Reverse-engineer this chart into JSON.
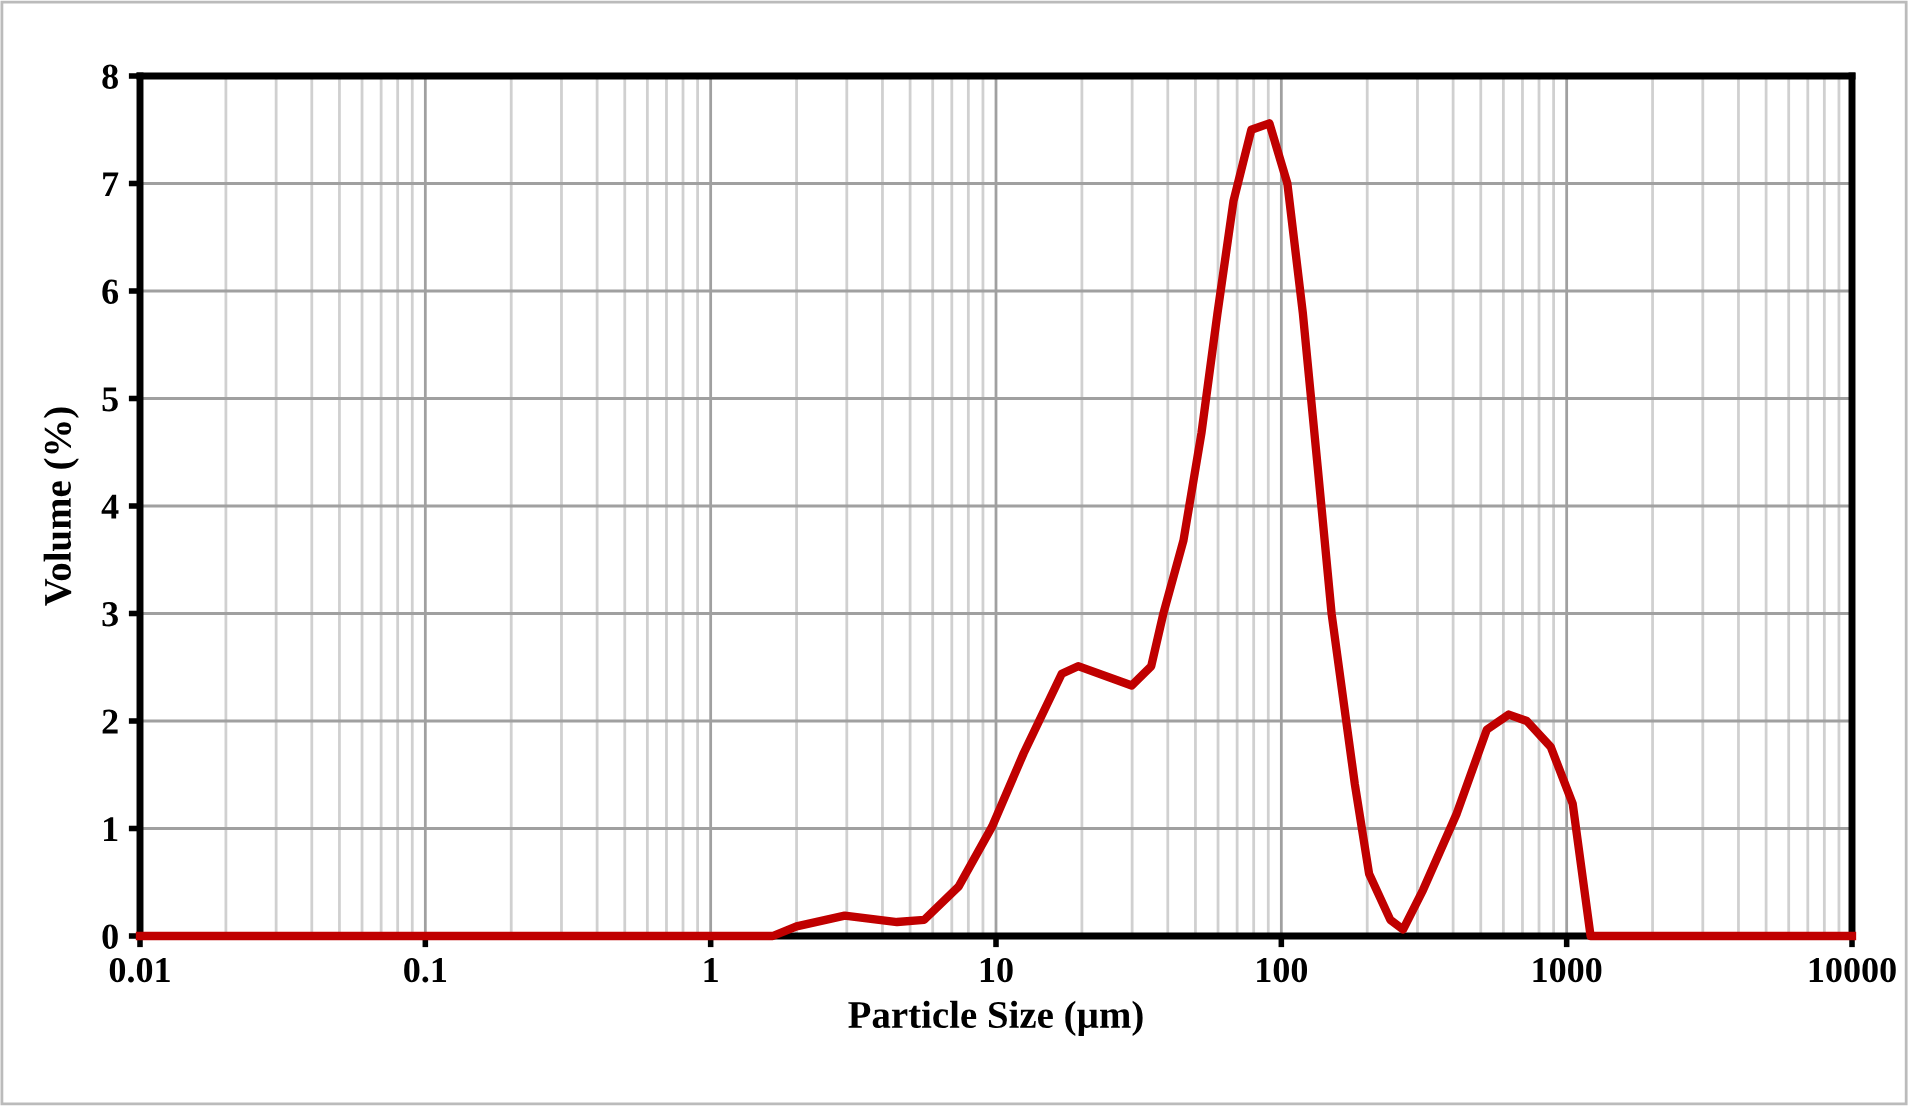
{
  "chart_data": {
    "type": "line",
    "xlabel": "Particle Size (µm)",
    "ylabel": "Volume (%)",
    "log": "x",
    "grid": true,
    "marker": "none",
    "line_style": "solid",
    "xlim": [
      0.01,
      10000
    ],
    "xticks": [
      0.01,
      0.1,
      1,
      10,
      100,
      1000,
      10000
    ],
    "ylim": [
      0,
      8
    ],
    "yticks": [
      0,
      1,
      2,
      3,
      4,
      5,
      6,
      7,
      8
    ],
    "x": [
      0.01,
      1.65,
      2.0,
      2.95,
      4.5,
      5.6,
      7.4,
      9.7,
      12.5,
      17,
      19.4,
      29.9,
      35,
      38.6,
      45.4,
      52.5,
      59.7,
      68,
      78.5,
      90.8,
      105,
      119,
      134,
      150,
      181,
      203,
      241,
      267,
      314,
      412,
      525,
      627,
      725,
      879,
      1050,
      1213,
      10000
    ],
    "series": [
      {
        "color": "#c00000",
        "values": [
          0,
          0,
          0.09,
          0.19,
          0.13,
          0.15,
          0.46,
          1.02,
          1.7,
          2.44,
          2.51,
          2.33,
          2.51,
          3.0,
          3.68,
          4.68,
          5.79,
          6.84,
          7.5,
          7.56,
          7.0,
          5.79,
          4.37,
          3.0,
          1.41,
          0.58,
          0.15,
          0.06,
          0.43,
          1.14,
          1.92,
          2.06,
          2.0,
          1.76,
          1.23,
          0,
          0
        ]
      }
    ]
  }
}
